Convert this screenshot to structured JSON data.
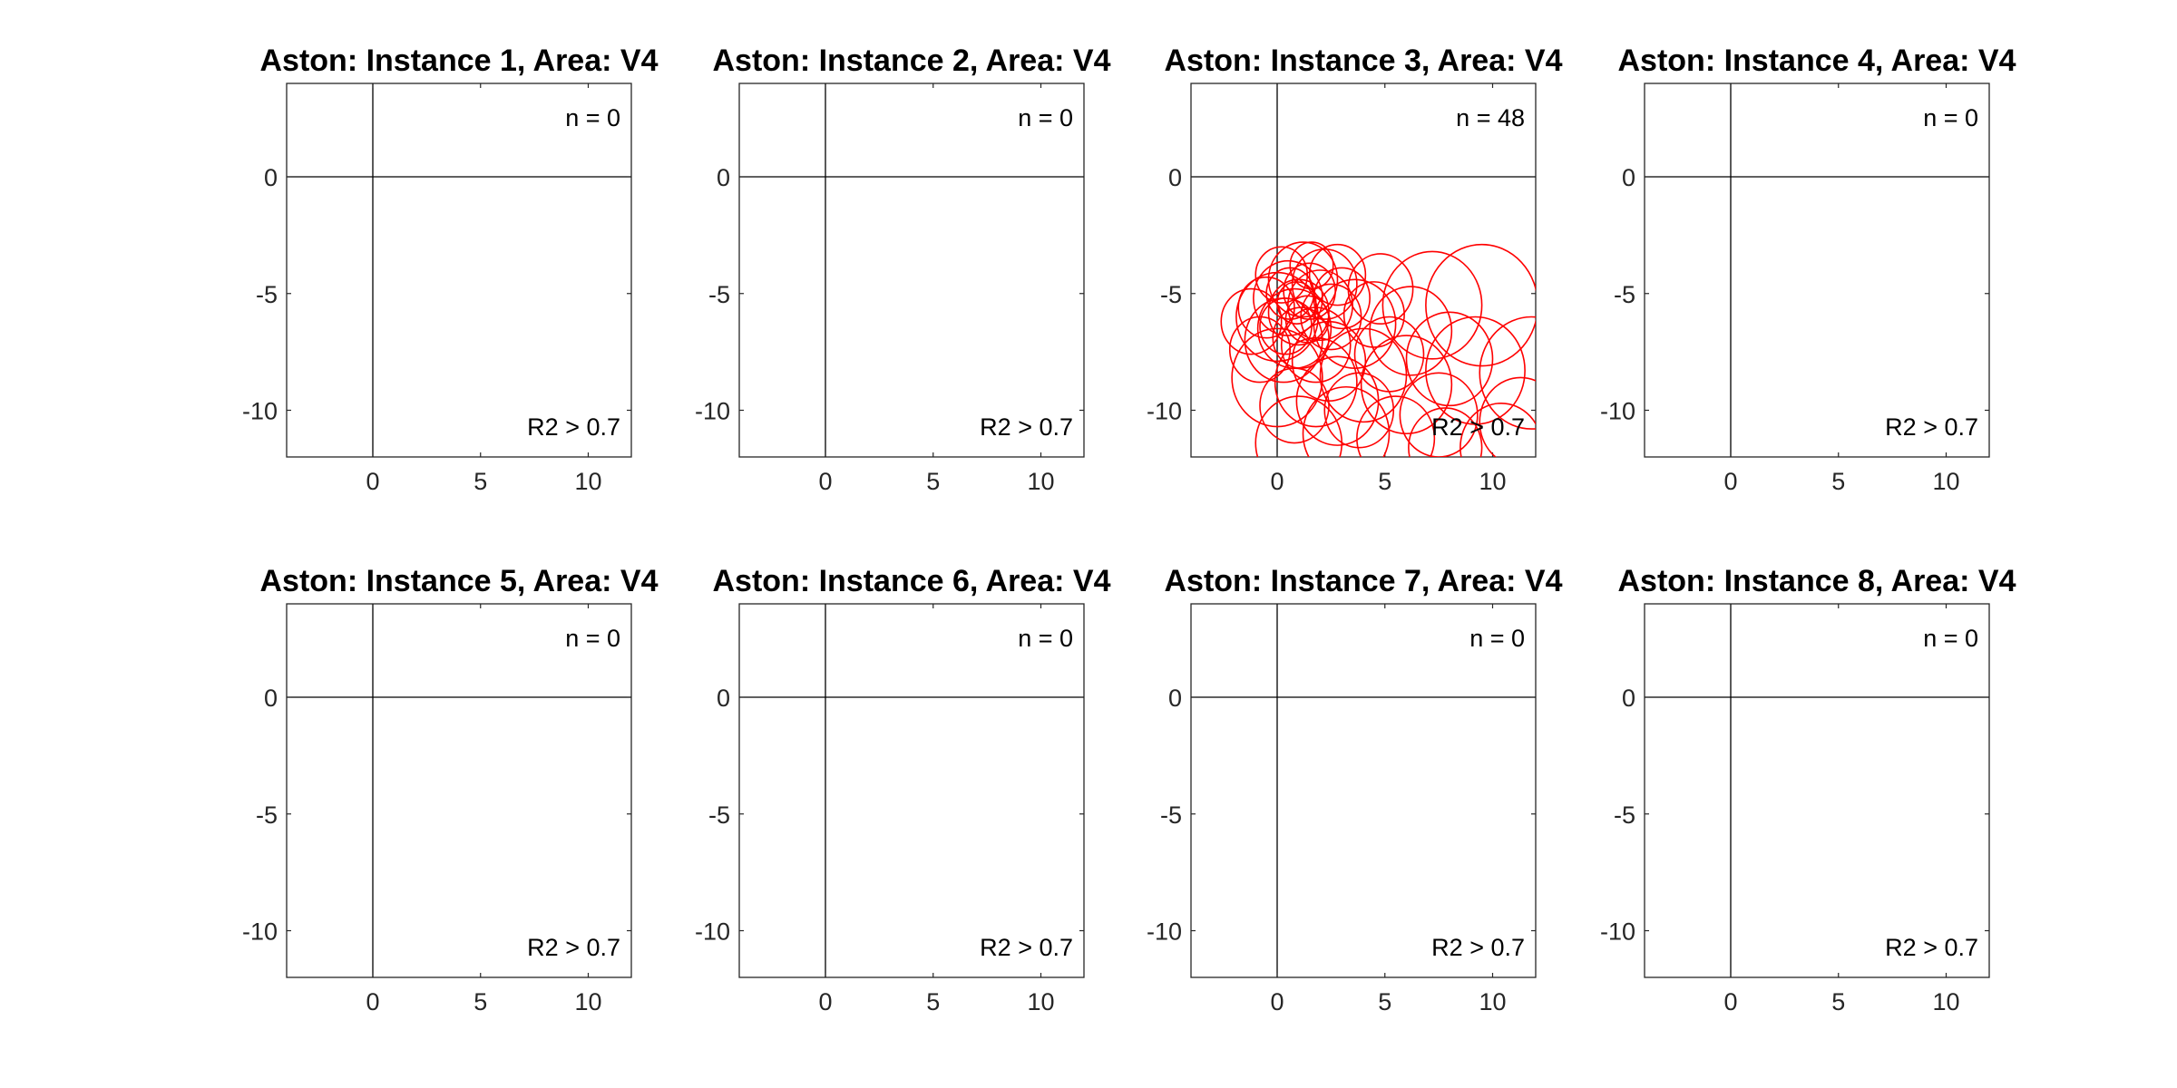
{
  "chart_data": [
    {
      "type": "scatter",
      "title": "Aston: Instance 1, Area: V4",
      "n_label": "n = 0",
      "r2_label": "R2 > 0.7",
      "xlim": [
        -4,
        12
      ],
      "ylim": [
        -12,
        4
      ],
      "xticks": [
        "0",
        "5",
        "10"
      ],
      "yticks": [
        "0",
        "-5",
        "-10"
      ],
      "xtick_values": [
        0,
        5,
        10
      ],
      "ytick_values": [
        0,
        -5,
        -10
      ],
      "grid": false,
      "color": "#ff0000",
      "circles": []
    },
    {
      "type": "scatter",
      "title": "Aston: Instance 2, Area: V4",
      "n_label": "n = 0",
      "r2_label": "R2 > 0.7",
      "xlim": [
        -4,
        12
      ],
      "ylim": [
        -12,
        4
      ],
      "xticks": [
        "0",
        "5",
        "10"
      ],
      "yticks": [
        "0",
        "-5",
        "-10"
      ],
      "xtick_values": [
        0,
        5,
        10
      ],
      "ytick_values": [
        0,
        -5,
        -10
      ],
      "grid": false,
      "color": "#ff0000",
      "circles": []
    },
    {
      "type": "scatter",
      "title": "Aston: Instance 3, Area: V4",
      "n_label": "n = 48",
      "r2_label": "R2 > 0.7",
      "xlim": [
        -4,
        12
      ],
      "ylim": [
        -12,
        4
      ],
      "xticks": [
        "0",
        "5",
        "10"
      ],
      "yticks": [
        "0",
        "-5",
        "-10"
      ],
      "xtick_values": [
        0,
        5,
        10
      ],
      "ytick_values": [
        0,
        -5,
        -10
      ],
      "grid": false,
      "color": "#ff0000",
      "circles": [
        {
          "x": 0.5,
          "y": -5.2,
          "r": 1.6
        },
        {
          "x": 1.0,
          "y": -5.8,
          "r": 1.4
        },
        {
          "x": 0.0,
          "y": -6.0,
          "r": 1.9
        },
        {
          "x": 1.5,
          "y": -4.9,
          "r": 1.2
        },
        {
          "x": 0.8,
          "y": -6.5,
          "r": 1.7
        },
        {
          "x": 2.0,
          "y": -5.5,
          "r": 1.5
        },
        {
          "x": -0.5,
          "y": -5.6,
          "r": 1.3
        },
        {
          "x": 1.2,
          "y": -4.4,
          "r": 1.6
        },
        {
          "x": 0.3,
          "y": -7.0,
          "r": 1.8
        },
        {
          "x": 2.5,
          "y": -6.0,
          "r": 1.4
        },
        {
          "x": 1.8,
          "y": -7.2,
          "r": 1.6
        },
        {
          "x": 0.6,
          "y": -5.0,
          "r": 1.1
        },
        {
          "x": 1.4,
          "y": -6.1,
          "r": 1.0
        },
        {
          "x": 0.9,
          "y": -5.4,
          "r": 0.9
        },
        {
          "x": -1.2,
          "y": -6.2,
          "r": 1.4
        },
        {
          "x": 3.0,
          "y": -5.2,
          "r": 1.3
        },
        {
          "x": 2.2,
          "y": -4.6,
          "r": 1.5
        },
        {
          "x": 4.8,
          "y": -4.8,
          "r": 1.5
        },
        {
          "x": 3.6,
          "y": -6.3,
          "r": 1.9
        },
        {
          "x": 6.2,
          "y": -6.6,
          "r": 1.9
        },
        {
          "x": 7.2,
          "y": -5.5,
          "r": 2.3
        },
        {
          "x": 9.5,
          "y": -5.5,
          "r": 2.6
        },
        {
          "x": 9.2,
          "y": -8.3,
          "r": 2.3
        },
        {
          "x": 11.8,
          "y": -8.4,
          "r": 2.4
        },
        {
          "x": 11.3,
          "y": -10.5,
          "r": 1.9
        },
        {
          "x": 7.5,
          "y": -10.2,
          "r": 1.8
        },
        {
          "x": 4.0,
          "y": -8.5,
          "r": 2.0
        },
        {
          "x": 3.2,
          "y": -11.0,
          "r": 2.0
        },
        {
          "x": 1.0,
          "y": -11.4,
          "r": 2.0
        },
        {
          "x": 0.0,
          "y": -8.6,
          "r": 2.1
        },
        {
          "x": 1.8,
          "y": -8.8,
          "r": 1.9
        },
        {
          "x": 6.0,
          "y": -8.9,
          "r": 2.1
        },
        {
          "x": 8.0,
          "y": -7.8,
          "r": 2.0
        },
        {
          "x": 5.5,
          "y": -11.2,
          "r": 1.8
        },
        {
          "x": 2.8,
          "y": -9.6,
          "r": 1.9
        },
        {
          "x": 4.5,
          "y": -5.9,
          "r": 1.4
        },
        {
          "x": 0.2,
          "y": -4.2,
          "r": 1.2
        },
        {
          "x": 1.6,
          "y": -3.8,
          "r": 1.0
        },
        {
          "x": 2.8,
          "y": -4.2,
          "r": 1.3
        },
        {
          "x": -0.8,
          "y": -7.4,
          "r": 1.4
        },
        {
          "x": 1.1,
          "y": -6.9,
          "r": 1.3
        },
        {
          "x": 0.4,
          "y": -6.4,
          "r": 1.2
        },
        {
          "x": 2.4,
          "y": -7.9,
          "r": 1.7
        },
        {
          "x": 5.2,
          "y": -7.6,
          "r": 1.6
        },
        {
          "x": 10.4,
          "y": -11.6,
          "r": 1.9
        },
        {
          "x": 7.8,
          "y": -11.6,
          "r": 1.7
        },
        {
          "x": 3.8,
          "y": -10.0,
          "r": 1.6
        },
        {
          "x": 0.8,
          "y": -9.8,
          "r": 1.6
        }
      ]
    },
    {
      "type": "scatter",
      "title": "Aston: Instance 4, Area: V4",
      "n_label": "n = 0",
      "r2_label": "R2 > 0.7",
      "xlim": [
        -4,
        12
      ],
      "ylim": [
        -12,
        4
      ],
      "xticks": [
        "0",
        "5",
        "10"
      ],
      "yticks": [
        "0",
        "-5",
        "-10"
      ],
      "xtick_values": [
        0,
        5,
        10
      ],
      "ytick_values": [
        0,
        -5,
        -10
      ],
      "grid": false,
      "color": "#ff0000",
      "circles": []
    },
    {
      "type": "scatter",
      "title": "Aston: Instance 5, Area: V4",
      "n_label": "n = 0",
      "r2_label": "R2 > 0.7",
      "xlim": [
        -4,
        12
      ],
      "ylim": [
        -12,
        4
      ],
      "xticks": [
        "0",
        "5",
        "10"
      ],
      "yticks": [
        "0",
        "-5",
        "-10"
      ],
      "xtick_values": [
        0,
        5,
        10
      ],
      "ytick_values": [
        0,
        -5,
        -10
      ],
      "grid": false,
      "color": "#ff0000",
      "circles": []
    },
    {
      "type": "scatter",
      "title": "Aston: Instance 6, Area: V4",
      "n_label": "n = 0",
      "r2_label": "R2 > 0.7",
      "xlim": [
        -4,
        12
      ],
      "ylim": [
        -12,
        4
      ],
      "xticks": [
        "0",
        "5",
        "10"
      ],
      "yticks": [
        "0",
        "-5",
        "-10"
      ],
      "xtick_values": [
        0,
        5,
        10
      ],
      "ytick_values": [
        0,
        -5,
        -10
      ],
      "grid": false,
      "color": "#ff0000",
      "circles": []
    },
    {
      "type": "scatter",
      "title": "Aston: Instance 7, Area: V4",
      "n_label": "n = 0",
      "r2_label": "R2 > 0.7",
      "xlim": [
        -4,
        12
      ],
      "ylim": [
        -12,
        4
      ],
      "xticks": [
        "0",
        "5",
        "10"
      ],
      "yticks": [
        "0",
        "-5",
        "-10"
      ],
      "xtick_values": [
        0,
        5,
        10
      ],
      "ytick_values": [
        0,
        -5,
        -10
      ],
      "grid": false,
      "color": "#ff0000",
      "circles": []
    },
    {
      "type": "scatter",
      "title": "Aston: Instance 8, Area: V4",
      "n_label": "n = 0",
      "r2_label": "R2 > 0.7",
      "xlim": [
        -4,
        12
      ],
      "ylim": [
        -12,
        4
      ],
      "xticks": [
        "0",
        "5",
        "10"
      ],
      "yticks": [
        "0",
        "-5",
        "-10"
      ],
      "xtick_values": [
        0,
        5,
        10
      ],
      "ytick_values": [
        0,
        -5,
        -10
      ],
      "grid": false,
      "color": "#ff0000",
      "circles": []
    }
  ]
}
